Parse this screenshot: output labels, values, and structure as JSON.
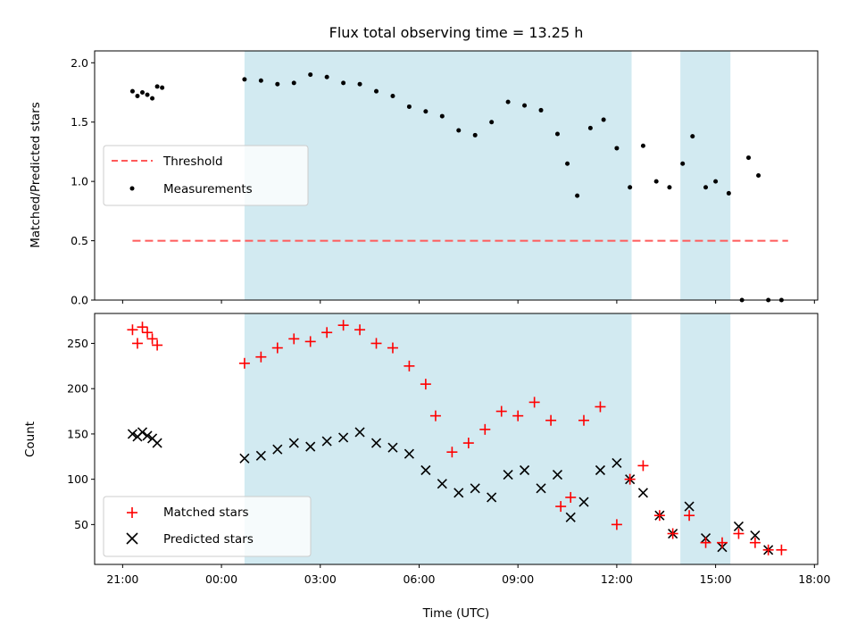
{
  "colors": {
    "shade": "#add8e6",
    "threshold": "#ff5a5a",
    "measurement": "#000000",
    "matched": "#ff0000",
    "predicted": "#000000"
  },
  "chart_data": [
    {
      "type": "scatter",
      "title": "Flux total observing time = 13.25 h",
      "xlabel": "",
      "ylabel": "Matched/Predicted stars",
      "x_unit": "hours since 00:00 UTC",
      "xlim": [
        -3.85,
        18.1
      ],
      "ylim": [
        0,
        2.1
      ],
      "yticks": [
        0.0,
        0.5,
        1.0,
        1.5,
        2.0
      ],
      "ytick_labels": [
        "0.0",
        "0.5",
        "1.0",
        "1.5",
        "2.0"
      ],
      "grid": false,
      "legend_position": "center-left",
      "shaded_intervals": [
        [
          0.7,
          12.45
        ],
        [
          13.93,
          15.45
        ]
      ],
      "series": [
        {
          "name": "Threshold",
          "type": "line",
          "style": "dashed",
          "x": [
            -2.7,
            17.2
          ],
          "y": [
            0.5,
            0.5
          ]
        },
        {
          "name": "Measurements",
          "type": "scatter",
          "marker": "dot",
          "x": [
            -2.7,
            -2.55,
            -2.4,
            -2.25,
            -2.1,
            -1.95,
            -1.8,
            0.7,
            1.2,
            1.7,
            2.2,
            2.7,
            3.2,
            3.7,
            4.2,
            4.7,
            5.2,
            5.7,
            6.2,
            6.7,
            7.2,
            7.7,
            8.2,
            8.7,
            9.2,
            9.7,
            10.2,
            10.5,
            10.8,
            11.2,
            11.6,
            12.0,
            12.4,
            12.8,
            13.2,
            13.6,
            14.0,
            14.3,
            14.7,
            15.0,
            15.4,
            15.8,
            16.0,
            16.3,
            16.6,
            17.0
          ],
          "y": [
            1.76,
            1.72,
            1.75,
            1.73,
            1.7,
            1.8,
            1.79,
            1.86,
            1.85,
            1.82,
            1.83,
            1.9,
            1.88,
            1.83,
            1.82,
            1.76,
            1.72,
            1.63,
            1.59,
            1.55,
            1.43,
            1.39,
            1.5,
            1.67,
            1.64,
            1.6,
            1.4,
            1.15,
            0.88,
            1.45,
            1.52,
            1.28,
            0.95,
            1.3,
            1.0,
            0.95,
            1.15,
            1.38,
            0.95,
            1.0,
            0.9,
            0.0,
            1.2,
            1.05,
            0.0,
            0.0
          ]
        }
      ]
    },
    {
      "type": "scatter",
      "title": "",
      "xlabel": "Time (UTC)",
      "ylabel": "Count",
      "x_unit": "hours since 00:00 UTC",
      "xlim": [
        -3.85,
        18.1
      ],
      "ylim": [
        6,
        283
      ],
      "xticks": [
        -3,
        0,
        3,
        6,
        9,
        12,
        15,
        18
      ],
      "xtick_labels": [
        "21:00",
        "00:00",
        "03:00",
        "06:00",
        "09:00",
        "12:00",
        "15:00",
        "18:00"
      ],
      "yticks": [
        50,
        100,
        150,
        200,
        250
      ],
      "ytick_labels": [
        "50",
        "100",
        "150",
        "200",
        "250"
      ],
      "grid": false,
      "legend_position": "lower-left",
      "shaded_intervals": [
        [
          0.7,
          12.45
        ],
        [
          13.93,
          15.45
        ]
      ],
      "series": [
        {
          "name": "Matched stars",
          "type": "scatter",
          "marker": "plus",
          "x": [
            -2.7,
            -2.55,
            -2.4,
            -2.25,
            -2.1,
            -1.95,
            0.7,
            1.2,
            1.7,
            2.2,
            2.7,
            3.2,
            3.7,
            4.2,
            4.7,
            5.2,
            5.7,
            6.2,
            6.5,
            7.0,
            7.5,
            8.0,
            8.5,
            9.0,
            9.5,
            10.0,
            10.3,
            10.6,
            11.0,
            11.5,
            12.0,
            12.4,
            12.8,
            13.3,
            13.7,
            14.2,
            14.7,
            15.2,
            15.7,
            16.2,
            16.6,
            17.0
          ],
          "y": [
            265,
            250,
            268,
            262,
            255,
            248,
            228,
            235,
            245,
            255,
            252,
            262,
            270,
            265,
            250,
            245,
            225,
            205,
            170,
            130,
            140,
            155,
            175,
            170,
            185,
            165,
            70,
            80,
            165,
            180,
            50,
            100,
            115,
            60,
            40,
            60,
            30,
            30,
            40,
            30,
            22,
            22
          ]
        },
        {
          "name": "Predicted stars",
          "type": "scatter",
          "marker": "x",
          "x": [
            -2.7,
            -2.55,
            -2.4,
            -2.25,
            -2.1,
            -1.95,
            0.7,
            1.2,
            1.7,
            2.2,
            2.7,
            3.2,
            3.7,
            4.2,
            4.7,
            5.2,
            5.7,
            6.2,
            6.7,
            7.2,
            7.7,
            8.2,
            8.7,
            9.2,
            9.7,
            10.2,
            10.6,
            11.0,
            11.5,
            12.0,
            12.4,
            12.8,
            13.3,
            13.7,
            14.2,
            14.7,
            15.2,
            15.7,
            16.2,
            16.6
          ],
          "y": [
            150,
            147,
            152,
            148,
            145,
            140,
            123,
            126,
            133,
            140,
            136,
            142,
            146,
            152,
            140,
            135,
            128,
            110,
            95,
            85,
            90,
            80,
            105,
            110,
            90,
            105,
            58,
            75,
            110,
            118,
            100,
            85,
            60,
            40,
            70,
            35,
            25,
            48,
            38,
            22
          ]
        }
      ]
    }
  ]
}
